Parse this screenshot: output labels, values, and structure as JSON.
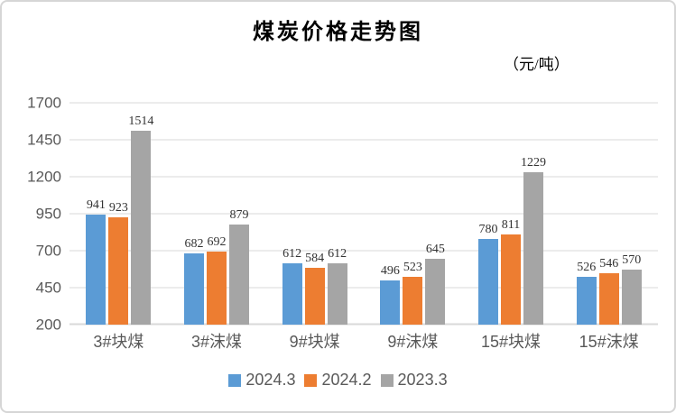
{
  "title": "煤炭价格走势图",
  "unit_label": "（元/吨）",
  "chart_data": {
    "type": "bar",
    "title": "煤炭价格走势图",
    "unit": "元/吨",
    "categories": [
      "3#块煤",
      "3#沫煤",
      "9#块煤",
      "9#沫煤",
      "15#块煤",
      "15#沫煤"
    ],
    "series": [
      {
        "name": "2024.3",
        "color": "#5B9BD5",
        "values": [
          941,
          682,
          612,
          496,
          780,
          526
        ]
      },
      {
        "name": "2024.2",
        "color": "#ED7D31",
        "values": [
          923,
          692,
          584,
          523,
          811,
          546
        ]
      },
      {
        "name": "2023.3",
        "color": "#A5A5A5",
        "values": [
          1514,
          879,
          612,
          645,
          1229,
          570
        ]
      }
    ],
    "y_axis": {
      "min": 200,
      "max": 1700,
      "step": 250,
      "ticks": [
        200,
        450,
        700,
        950,
        1200,
        1450,
        1700
      ]
    },
    "grid": true,
    "legend_position": "bottom"
  },
  "colors": {
    "grid_color": "#D9D9D9",
    "axis_text_color": "#595959",
    "data_label_color": "#333333",
    "title_color": "#000000",
    "card_border_color": "#D6D6D6",
    "background": "#FFFFFF"
  }
}
